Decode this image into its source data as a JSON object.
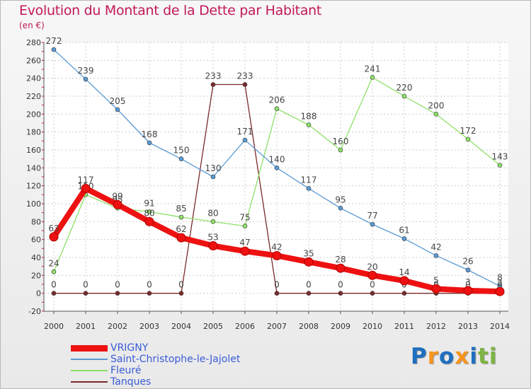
{
  "title": "Evolution du Montant de la Dette par Habitant",
  "subtitle": "(en €)",
  "logo": {
    "letters": [
      "P",
      "r",
      "o",
      "x",
      "i",
      "t",
      "i"
    ],
    "colors": [
      "#1f6fbf",
      "#f7941d",
      "#1f6fbf",
      "#f7941d",
      "#1f6fbf",
      "#7cb342",
      "#7cb342"
    ]
  },
  "chart_data": {
    "type": "line",
    "x": [
      "2000",
      "2001",
      "2002",
      "2003",
      "2004",
      "2005",
      "2006",
      "2007",
      "2008",
      "2009",
      "2010",
      "2011",
      "2012",
      "2013",
      "2014"
    ],
    "ylim": [
      -20,
      280
    ],
    "yticks": [
      "-20",
      "0",
      "20",
      "40",
      "60",
      "80",
      "100",
      "120",
      "140",
      "160",
      "180",
      "200",
      "220",
      "240",
      "260",
      "280"
    ],
    "grid": true,
    "legend_position": "bottom-left",
    "series": [
      {
        "name": "Tanques",
        "color": "#7a2a2a",
        "values": [
          0,
          0,
          0,
          0,
          0,
          233,
          233,
          0,
          0,
          0,
          0,
          0,
          0,
          0,
          0
        ],
        "labels": [
          "0",
          "0",
          "0",
          "0",
          "0",
          "233",
          "233",
          "0",
          "0",
          "0",
          "0",
          "0",
          "0",
          "0",
          "0"
        ]
      },
      {
        "name": "Fleuré",
        "color": "#8ee068",
        "values": [
          24,
          110,
          95,
          91,
          85,
          80,
          75,
          206,
          188,
          160,
          241,
          220,
          200,
          172,
          143
        ],
        "labels": [
          "24",
          "110",
          "95",
          "91",
          "85",
          "80",
          "75",
          "206",
          "188",
          "160",
          "241",
          "220",
          "200",
          "172",
          "143"
        ]
      },
      {
        "name": "Saint-Christophe-le-Jajolet",
        "color": "#5b9bd5",
        "values": [
          272,
          239,
          205,
          168,
          150,
          130,
          171,
          140,
          117,
          95,
          77,
          61,
          42,
          26,
          8
        ],
        "labels": [
          "272",
          "239",
          "205",
          "168",
          "150",
          "130",
          "171",
          "140",
          "117",
          "95",
          "77",
          "61",
          "42",
          "26",
          "8"
        ]
      },
      {
        "name": "VRIGNY",
        "color": "#ee1111",
        "values": [
          63,
          117,
          99,
          80,
          62,
          53,
          47,
          42,
          35,
          28,
          20,
          14,
          5,
          3,
          2
        ],
        "labels": [
          "63",
          "117",
          "99",
          "80",
          "62",
          "53",
          "47",
          "42",
          "35",
          "28",
          "20",
          "14",
          "5",
          "3",
          "2"
        ]
      }
    ],
    "legend": [
      "VRIGNY",
      "Saint-Christophe-le-Jajolet",
      "Fleuré",
      "Tanques"
    ]
  }
}
